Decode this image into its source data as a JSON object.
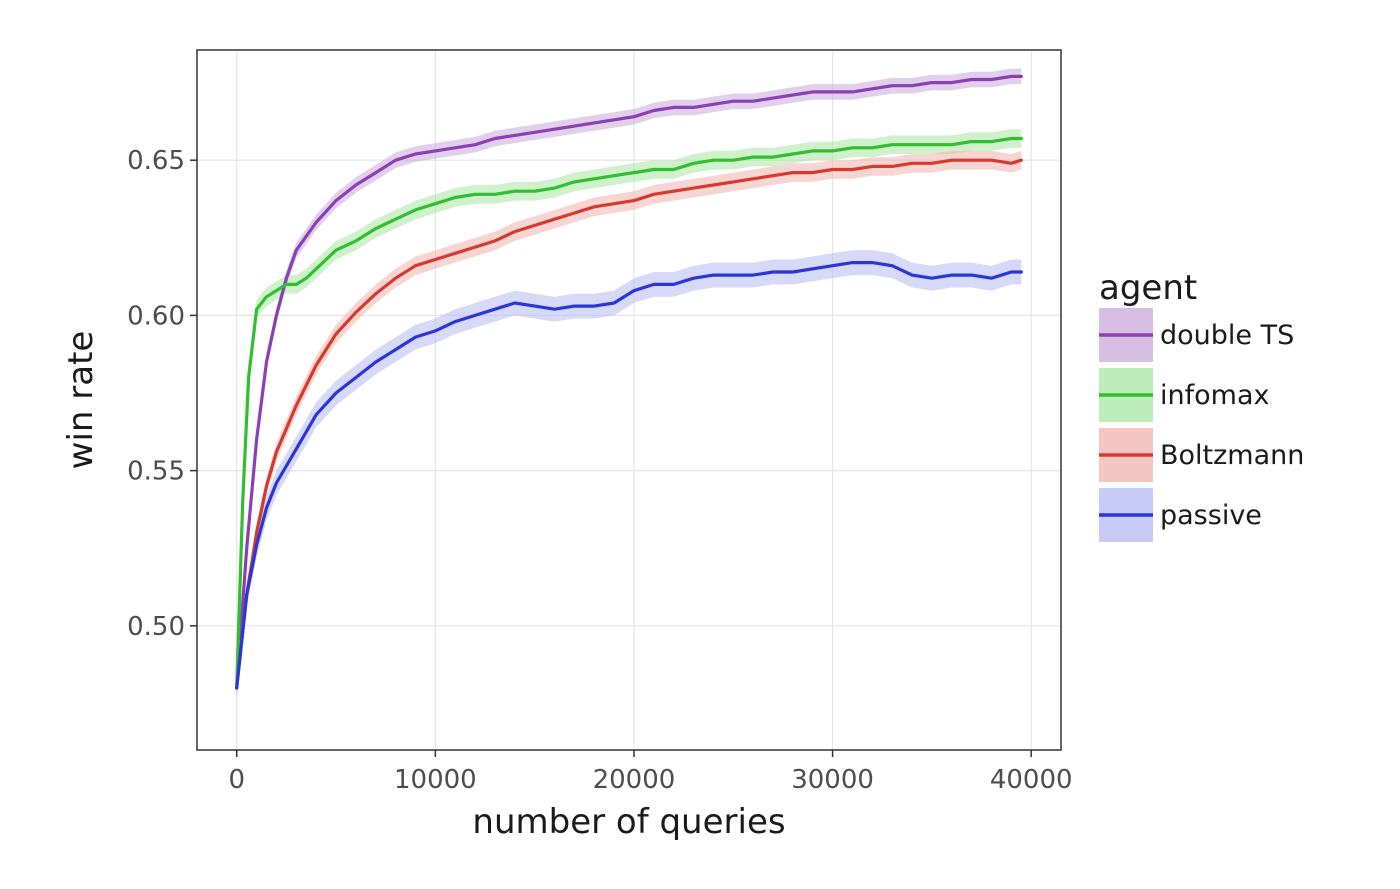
{
  "chart_data": {
    "type": "line",
    "xlabel": "number of queries",
    "ylabel": "win rate",
    "xlim": [
      -2000,
      41500
    ],
    "ylim": [
      0.46,
      0.6855
    ],
    "x_ticks": [
      0,
      10000,
      20000,
      30000,
      40000
    ],
    "x_tick_labels": [
      "0",
      "10000",
      "20000",
      "30000",
      "40000"
    ],
    "y_ticks": [
      0.5,
      0.55,
      0.6,
      0.65
    ],
    "y_tick_labels": [
      "0.50",
      "0.55",
      "0.60",
      "0.65"
    ],
    "grid": true,
    "legend": {
      "title": "agent",
      "placement": "right"
    },
    "series": [
      {
        "name": "double TS",
        "color": "#8a3fb5",
        "band_color": "#c9a8dc",
        "band": 0.0025,
        "x": [
          0,
          500,
          1000,
          1500,
          2000,
          2500,
          3000,
          4000,
          5000,
          6000,
          7000,
          8000,
          9000,
          10000,
          11000,
          12000,
          13000,
          14000,
          15000,
          16000,
          17000,
          18000,
          19000,
          20000,
          21000,
          22000,
          23000,
          24000,
          25000,
          26000,
          27000,
          28000,
          29000,
          30000,
          31000,
          32000,
          33000,
          34000,
          35000,
          36000,
          37000,
          38000,
          39000,
          39500
        ],
        "y": [
          0.48,
          0.525,
          0.56,
          0.585,
          0.6,
          0.612,
          0.621,
          0.63,
          0.637,
          0.642,
          0.646,
          0.65,
          0.652,
          0.653,
          0.654,
          0.655,
          0.657,
          0.658,
          0.659,
          0.66,
          0.661,
          0.662,
          0.663,
          0.664,
          0.666,
          0.667,
          0.667,
          0.668,
          0.669,
          0.669,
          0.67,
          0.671,
          0.672,
          0.672,
          0.672,
          0.673,
          0.674,
          0.674,
          0.675,
          0.675,
          0.676,
          0.676,
          0.677,
          0.677
        ]
      },
      {
        "name": "infomax",
        "color": "#2fbf2f",
        "band_color": "#a8e6a3",
        "band": 0.003,
        "x": [
          0,
          300,
          600,
          1000,
          1500,
          2000,
          2500,
          3000,
          3500,
          4000,
          4500,
          5000,
          6000,
          7000,
          8000,
          9000,
          10000,
          11000,
          12000,
          13000,
          14000,
          15000,
          16000,
          17000,
          18000,
          19000,
          20000,
          21000,
          22000,
          23000,
          24000,
          25000,
          26000,
          27000,
          28000,
          29000,
          30000,
          31000,
          32000,
          33000,
          34000,
          35000,
          36000,
          37000,
          38000,
          39000,
          39500
        ],
        "y": [
          0.48,
          0.54,
          0.58,
          0.602,
          0.606,
          0.608,
          0.61,
          0.61,
          0.612,
          0.615,
          0.618,
          0.621,
          0.624,
          0.628,
          0.631,
          0.634,
          0.636,
          0.638,
          0.639,
          0.639,
          0.64,
          0.64,
          0.641,
          0.643,
          0.644,
          0.645,
          0.646,
          0.647,
          0.647,
          0.649,
          0.65,
          0.65,
          0.651,
          0.651,
          0.652,
          0.653,
          0.653,
          0.654,
          0.654,
          0.655,
          0.655,
          0.655,
          0.655,
          0.656,
          0.656,
          0.657,
          0.657
        ]
      },
      {
        "name": "Boltzmann",
        "color": "#d63a2f",
        "band_color": "#f0b3ad",
        "band": 0.003,
        "x": [
          0,
          500,
          1000,
          1500,
          2000,
          3000,
          4000,
          5000,
          6000,
          7000,
          8000,
          9000,
          10000,
          11000,
          12000,
          13000,
          14000,
          15000,
          16000,
          17000,
          18000,
          19000,
          20000,
          21000,
          22000,
          23000,
          24000,
          25000,
          26000,
          27000,
          28000,
          29000,
          30000,
          31000,
          32000,
          33000,
          34000,
          35000,
          36000,
          37000,
          38000,
          39000,
          39500
        ],
        "y": [
          0.48,
          0.51,
          0.53,
          0.545,
          0.556,
          0.571,
          0.584,
          0.594,
          0.601,
          0.607,
          0.612,
          0.616,
          0.618,
          0.62,
          0.622,
          0.624,
          0.627,
          0.629,
          0.631,
          0.633,
          0.635,
          0.636,
          0.637,
          0.639,
          0.64,
          0.641,
          0.642,
          0.643,
          0.644,
          0.645,
          0.646,
          0.646,
          0.647,
          0.647,
          0.648,
          0.648,
          0.649,
          0.649,
          0.65,
          0.65,
          0.65,
          0.649,
          0.65
        ]
      },
      {
        "name": "passive",
        "color": "#2b36d9",
        "band_color": "#b5b9f2",
        "band": 0.004,
        "x": [
          0,
          500,
          1000,
          1500,
          2000,
          3000,
          4000,
          5000,
          6000,
          7000,
          8000,
          9000,
          10000,
          11000,
          12000,
          13000,
          14000,
          15000,
          16000,
          17000,
          18000,
          19000,
          20000,
          21000,
          22000,
          23000,
          24000,
          25000,
          26000,
          27000,
          28000,
          29000,
          30000,
          31000,
          32000,
          33000,
          34000,
          35000,
          36000,
          37000,
          38000,
          39000,
          39500
        ],
        "y": [
          0.48,
          0.51,
          0.526,
          0.538,
          0.546,
          0.557,
          0.568,
          0.575,
          0.58,
          0.585,
          0.589,
          0.593,
          0.595,
          0.598,
          0.6,
          0.602,
          0.604,
          0.603,
          0.602,
          0.603,
          0.603,
          0.604,
          0.608,
          0.61,
          0.61,
          0.612,
          0.613,
          0.613,
          0.613,
          0.614,
          0.614,
          0.615,
          0.616,
          0.617,
          0.617,
          0.616,
          0.613,
          0.612,
          0.613,
          0.613,
          0.612,
          0.614,
          0.614
        ]
      }
    ]
  }
}
